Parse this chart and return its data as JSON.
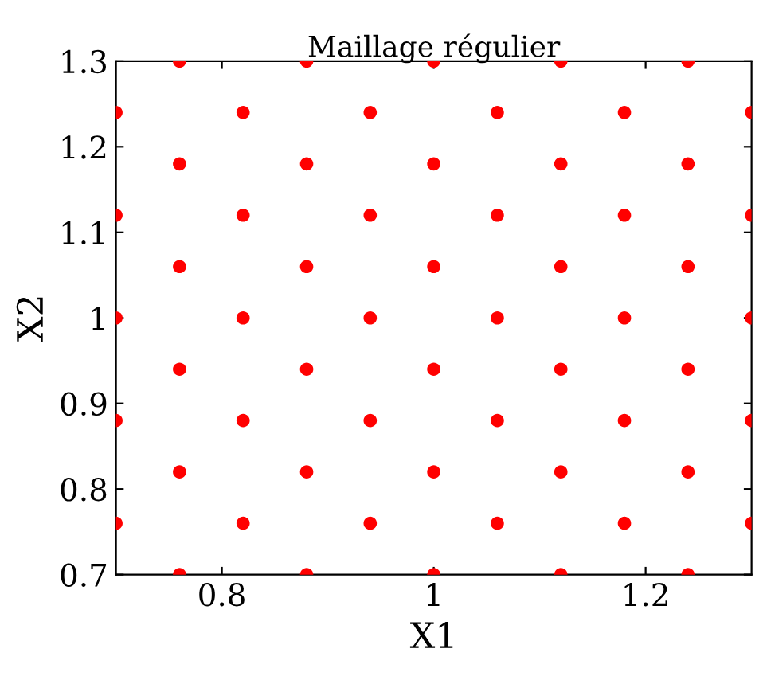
{
  "chart_data": {
    "type": "scatter",
    "title": "Maillage régulier",
    "xlabel": "X1",
    "ylabel": "X2",
    "x": [
      0.76,
      0.88,
      1.0,
      1.12,
      1.24,
      0.7,
      0.82,
      0.94,
      1.06,
      1.18,
      1.3,
      0.76,
      0.88,
      1.0,
      1.12,
      1.24,
      0.7,
      0.82,
      0.94,
      1.06,
      1.18,
      1.3,
      0.76,
      0.88,
      1.0,
      1.12,
      1.24,
      0.7,
      0.82,
      0.94,
      1.06,
      1.18,
      1.3,
      0.76,
      0.88,
      1.0,
      1.12,
      1.24,
      0.7,
      0.82,
      0.94,
      1.06,
      1.18,
      1.3,
      0.76,
      0.88,
      1.0,
      1.12,
      1.24,
      0.7,
      0.82,
      0.94,
      1.06,
      1.18,
      1.3,
      0.76,
      0.88,
      1.0,
      1.12,
      1.24
    ],
    "series": [
      {
        "color": "#ff0000",
        "values": [
          0.7,
          0.7,
          0.7,
          0.7,
          0.7,
          0.76,
          0.76,
          0.76,
          0.76,
          0.76,
          0.76,
          0.82,
          0.82,
          0.82,
          0.82,
          0.82,
          0.88,
          0.88,
          0.88,
          0.88,
          0.88,
          0.88,
          0.94,
          0.94,
          0.94,
          0.94,
          0.94,
          1.0,
          1.0,
          1.0,
          1.0,
          1.0,
          1.0,
          1.06,
          1.06,
          1.06,
          1.06,
          1.06,
          1.12,
          1.12,
          1.12,
          1.12,
          1.12,
          1.12,
          1.18,
          1.18,
          1.18,
          1.18,
          1.18,
          1.24,
          1.24,
          1.24,
          1.24,
          1.24,
          1.24,
          1.3,
          1.3,
          1.3,
          1.3,
          1.3
        ]
      }
    ],
    "xlim": [
      0.7,
      1.3
    ],
    "ylim": [
      0.7,
      1.3
    ],
    "xticks": [
      0.8,
      1,
      1.2
    ],
    "yticks": [
      0.7,
      0.8,
      0.9,
      1,
      1.1,
      1.2,
      1.3
    ],
    "marker": "circle",
    "grid": false,
    "legend": false
  }
}
